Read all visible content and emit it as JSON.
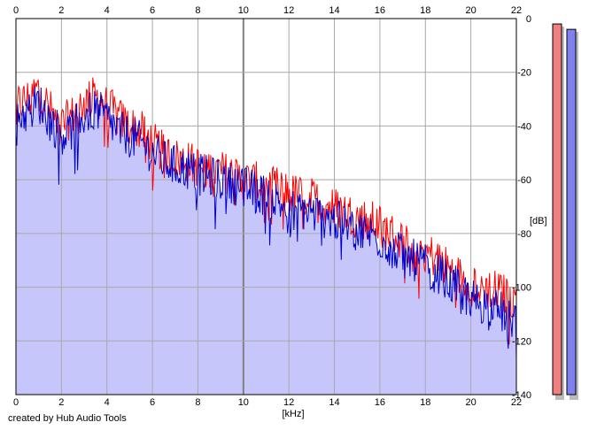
{
  "credit": "created by Hub Audio Tools",
  "chart_data": {
    "type": "area",
    "xlabel": "[kHz]",
    "ylabel": "[dB]",
    "xlim": [
      0,
      22
    ],
    "ylim": [
      -140,
      0
    ],
    "x_ticks": [
      "0",
      "2",
      "4",
      "6",
      "8",
      "10",
      "12",
      "14",
      "16",
      "18",
      "20",
      "22"
    ],
    "y_ticks": [
      "0",
      "-20",
      "-40",
      "-60",
      "-80",
      "-100",
      "-120",
      "-140"
    ],
    "grid": true,
    "colors": {
      "fill": "#c6c6fb",
      "left_channel": "#ff0000",
      "right_channel": "#0000cc",
      "grid": "#a8a8a8",
      "grid_major": "#808080",
      "meter_left": "#f08080",
      "meter_right": "#8080f0"
    },
    "x_khz": [
      0,
      0.5,
      1,
      1.5,
      2,
      2.5,
      3,
      3.5,
      4,
      4.5,
      5,
      5.5,
      6,
      6.5,
      7,
      7.5,
      8,
      8.5,
      9,
      9.5,
      10,
      10.5,
      11,
      11.5,
      12,
      12.5,
      13,
      13.5,
      14,
      14.5,
      15,
      15.5,
      16,
      16.5,
      17,
      17.5,
      18,
      18.5,
      19,
      19.5,
      20,
      20.5,
      21,
      21.5,
      22
    ],
    "series": [
      {
        "values": [
          -32,
          -30,
          -26,
          -34,
          -40,
          -36,
          -31,
          -29,
          -32,
          -37,
          -40,
          -42,
          -46,
          -50,
          -52,
          -53,
          -55,
          -56,
          -57,
          -58,
          -60,
          -61,
          -62,
          -63,
          -65,
          -66,
          -67,
          -69,
          -70,
          -72,
          -74,
          -75,
          -77,
          -80,
          -83,
          -85,
          -87,
          -89,
          -93,
          -96,
          -98,
          -100,
          -101,
          -103,
          -105
        ]
      },
      {
        "values": [
          -36,
          -35,
          -31,
          -38,
          -43,
          -41,
          -36,
          -34,
          -37,
          -42,
          -44,
          -46,
          -50,
          -53,
          -55,
          -56,
          -58,
          -59,
          -60,
          -61,
          -63,
          -64,
          -66,
          -68,
          -71,
          -71,
          -72,
          -74,
          -75,
          -77,
          -79,
          -80,
          -82,
          -85,
          -88,
          -90,
          -92,
          -94,
          -98,
          -101,
          -104,
          -106,
          -108,
          -110,
          -112
        ]
      }
    ],
    "meters": [
      {
        "level_db": -2
      },
      {
        "level_db": -4
      }
    ]
  }
}
